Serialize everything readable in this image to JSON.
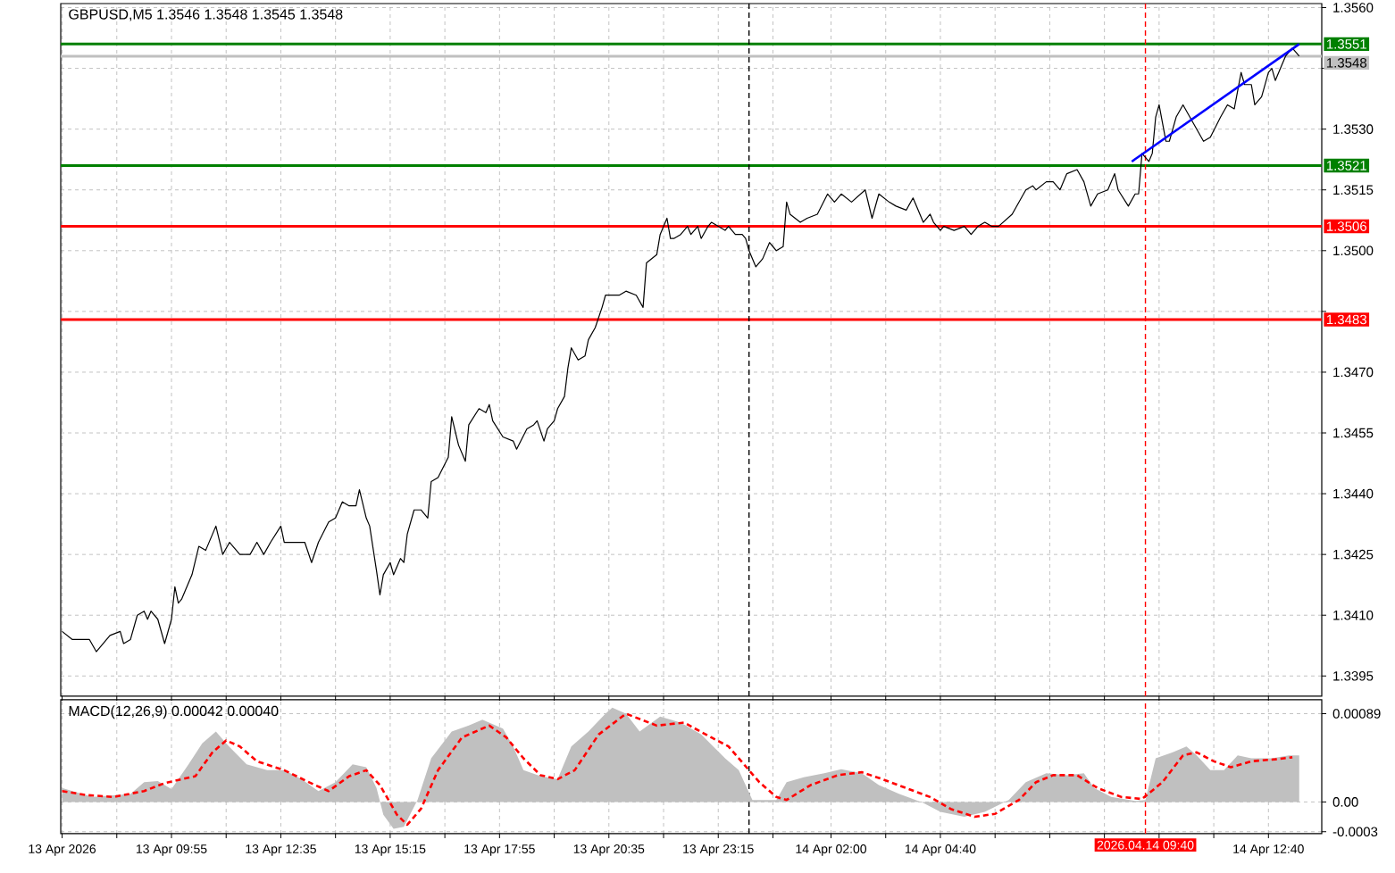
{
  "chart_data": [
    {
      "type": "line",
      "title": "GBPUSD,M5  1.3546 1.3548 1.3545 1.3548",
      "series": [
        {
          "color": "#000000",
          "x": [
            "2026-04-13T07:15",
            "2026-04-13T07:30",
            "2026-04-13T07:55",
            "2026-04-13T08:05",
            "2026-04-13T08:25",
            "2026-04-13T08:40",
            "2026-04-13T08:45",
            "2026-04-13T08:55",
            "2026-04-13T09:05",
            "2026-04-13T09:15",
            "2026-04-13T09:20",
            "2026-04-13T09:25",
            "2026-04-13T09:35",
            "2026-04-13T09:40",
            "2026-04-13T09:45",
            "2026-04-13T09:55",
            "2026-04-13T10:00",
            "2026-04-13T10:05",
            "2026-04-13T10:10",
            "2026-04-13T10:25",
            "2026-04-13T10:35",
            "2026-04-13T10:45",
            "2026-04-13T11:00",
            "2026-04-13T11:10",
            "2026-04-13T11:20",
            "2026-04-13T11:35",
            "2026-04-13T11:50",
            "2026-04-13T12:00",
            "2026-04-13T12:10",
            "2026-04-13T12:20",
            "2026-04-13T12:35",
            "2026-04-13T12:40",
            "2026-04-13T13:00",
            "2026-04-13T13:10",
            "2026-04-13T13:20",
            "2026-04-13T13:30",
            "2026-04-13T13:45",
            "2026-04-13T13:55",
            "2026-04-13T14:05",
            "2026-04-13T14:15",
            "2026-04-13T14:25",
            "2026-04-13T14:30",
            "2026-04-13T14:40",
            "2026-04-13T14:45",
            "2026-04-13T14:55",
            "2026-04-13T15:00",
            "2026-04-13T15:05",
            "2026-04-13T15:15",
            "2026-04-13T15:20",
            "2026-04-13T15:30",
            "2026-04-13T15:35",
            "2026-04-13T15:40",
            "2026-04-13T15:50",
            "2026-04-13T16:00",
            "2026-04-13T16:10",
            "2026-04-13T16:15",
            "2026-04-13T16:25",
            "2026-04-13T16:40",
            "2026-04-13T16:45",
            "2026-04-13T16:55",
            "2026-04-13T17:05",
            "2026-04-13T17:10",
            "2026-04-13T17:25",
            "2026-04-13T17:35",
            "2026-04-13T17:40",
            "2026-04-13T17:45",
            "2026-04-13T18:00",
            "2026-04-13T18:15",
            "2026-04-13T18:20",
            "2026-04-13T18:35",
            "2026-04-13T18:45",
            "2026-04-13T18:50",
            "2026-04-13T19:00",
            "2026-04-13T19:05",
            "2026-04-13T19:15",
            "2026-04-13T19:20",
            "2026-04-13T19:30",
            "2026-04-13T19:35",
            "2026-04-13T19:40",
            "2026-04-13T19:50",
            "2026-04-13T20:00",
            "2026-04-13T20:05",
            "2026-04-13T20:15",
            "2026-04-13T20:25",
            "2026-04-13T20:30",
            "2026-04-13T20:50",
            "2026-04-13T21:00",
            "2026-04-13T21:15",
            "2026-04-13T21:25",
            "2026-04-13T21:30",
            "2026-04-13T21:45",
            "2026-04-13T21:50",
            "2026-04-13T22:00",
            "2026-04-13T22:05",
            "2026-04-13T22:10",
            "2026-04-13T22:20",
            "2026-04-13T22:30",
            "2026-04-13T22:35",
            "2026-04-13T22:45",
            "2026-04-13T22:50",
            "2026-04-13T23:00",
            "2026-04-13T23:05",
            "2026-04-13T23:15",
            "2026-04-13T23:25",
            "2026-04-13T23:30",
            "2026-04-13T23:40",
            "2026-04-13T23:50",
            "2026-04-13T23:55",
            "2026-04-14T00:00",
            "2026-04-14T00:10",
            "2026-04-14T00:20",
            "2026-04-14T00:30",
            "2026-04-14T00:35",
            "2026-04-14T00:40",
            "2026-04-14T00:50",
            "2026-04-14T00:55",
            "2026-04-14T01:00",
            "2026-04-14T01:15",
            "2026-04-14T01:25",
            "2026-04-14T01:40",
            "2026-04-14T01:55",
            "2026-04-14T02:05",
            "2026-04-14T02:15",
            "2026-04-14T02:30",
            "2026-04-14T02:50",
            "2026-04-14T03:00",
            "2026-04-14T03:10",
            "2026-04-14T03:25",
            "2026-04-14T03:35",
            "2026-04-14T03:50",
            "2026-04-14T04:00",
            "2026-04-14T04:15",
            "2026-04-14T04:25",
            "2026-04-14T04:30",
            "2026-04-14T04:40",
            "2026-04-14T04:45",
            "2026-04-14T05:00",
            "2026-04-14T05:15",
            "2026-04-14T05:25",
            "2026-04-14T05:35",
            "2026-04-14T05:45",
            "2026-04-14T05:55",
            "2026-04-14T06:05",
            "2026-04-14T06:25",
            "2026-04-14T06:45",
            "2026-04-14T06:55",
            "2026-04-14T07:00",
            "2026-04-14T07:15",
            "2026-04-14T07:25",
            "2026-04-14T07:35",
            "2026-04-14T07:45",
            "2026-04-14T08:00",
            "2026-04-14T08:10",
            "2026-04-14T08:20",
            "2026-04-14T08:30",
            "2026-04-14T08:45",
            "2026-04-14T08:55",
            "2026-04-14T09:00",
            "2026-04-14T09:15",
            "2026-04-14T09:25",
            "2026-04-14T09:30",
            "2026-04-14T09:35",
            "2026-04-14T09:45",
            "2026-04-14T09:50",
            "2026-04-14T09:55",
            "2026-04-14T10:00",
            "2026-04-14T10:10",
            "2026-04-14T10:15",
            "2026-04-14T10:25",
            "2026-04-14T10:35",
            "2026-04-14T10:45",
            "2026-04-14T11:05",
            "2026-04-14T11:15",
            "2026-04-14T11:30",
            "2026-04-14T11:40",
            "2026-04-14T11:50",
            "2026-04-14T12:00",
            "2026-04-14T12:05",
            "2026-04-14T12:15",
            "2026-04-14T12:20",
            "2026-04-14T12:30",
            "2026-04-14T12:40",
            "2026-04-14T12:45",
            "2026-04-14T12:50",
            "2026-04-14T13:00",
            "2026-04-14T13:05",
            "2026-04-14T13:15",
            "2026-04-14T13:25"
          ],
          "values": [
            1.3406,
            1.3404,
            1.3404,
            1.3401,
            1.3405,
            1.3406,
            1.3403,
            1.3404,
            1.341,
            1.3411,
            1.3409,
            1.3411,
            1.3409,
            1.3406,
            1.3403,
            1.3409,
            1.3417,
            1.3413,
            1.3414,
            1.342,
            1.3427,
            1.3426,
            1.3432,
            1.3425,
            1.3428,
            1.3425,
            1.3425,
            1.3428,
            1.3425,
            1.3428,
            1.3432,
            1.3428,
            1.3428,
            1.3428,
            1.3423,
            1.3428,
            1.3433,
            1.3434,
            1.3438,
            1.3437,
            1.3437,
            1.3441,
            1.3434,
            1.3432,
            1.3421,
            1.3415,
            1.342,
            1.3423,
            1.342,
            1.3424,
            1.3423,
            1.343,
            1.3436,
            1.3436,
            1.3434,
            1.3443,
            1.3444,
            1.3449,
            1.3459,
            1.3452,
            1.3448,
            1.3457,
            1.3461,
            1.346,
            1.3462,
            1.3458,
            1.3454,
            1.3453,
            1.3451,
            1.3456,
            1.3457,
            1.3458,
            1.3453,
            1.3456,
            1.3458,
            1.3461,
            1.3464,
            1.3471,
            1.3476,
            1.3473,
            1.3474,
            1.3478,
            1.3481,
            1.3486,
            1.3489,
            1.3489,
            1.349,
            1.3489,
            1.3486,
            1.3497,
            1.3499,
            1.3504,
            1.3508,
            1.3503,
            1.3503,
            1.3504,
            1.3506,
            1.3504,
            1.3506,
            1.3503,
            1.3506,
            1.3507,
            1.3506,
            1.3505,
            1.3506,
            1.3504,
            1.3504,
            1.3503,
            1.35,
            1.3496,
            1.3498,
            1.3502,
            1.3501,
            1.35,
            1.3501,
            1.3512,
            1.3509,
            1.3507,
            1.3508,
            1.3509,
            1.3514,
            1.3512,
            1.3514,
            1.3512,
            1.3515,
            1.3508,
            1.3514,
            1.3512,
            1.3511,
            1.351,
            1.3513,
            1.3507,
            1.3509,
            1.3507,
            1.3505,
            1.3506,
            1.3505,
            1.3506,
            1.3504,
            1.3506,
            1.3507,
            1.3506,
            1.3506,
            1.3509,
            1.3515,
            1.3516,
            1.3515,
            1.3517,
            1.3517,
            1.3515,
            1.3519,
            1.352,
            1.3517,
            1.3511,
            1.3514,
            1.3515,
            1.3519,
            1.3515,
            1.3511,
            1.3514,
            1.3514,
            1.3524,
            1.3522,
            1.3524,
            1.3533,
            1.3536,
            1.3527,
            1.3527,
            1.3533,
            1.3536,
            1.3533,
            1.3527,
            1.3528,
            1.3533,
            1.3536,
            1.3535,
            1.3544,
            1.3541,
            1.3541,
            1.3536,
            1.3538,
            1.3544,
            1.3545,
            1.3542,
            1.3546,
            1.3548,
            1.355,
            1.3548
          ]
        },
        {
          "color": "#0000ff",
          "x": [
            "2026-04-14T09:20",
            "2026-04-14T13:25"
          ],
          "values": [
            1.3522,
            1.3551
          ]
        }
      ],
      "ref_lines": [
        {
          "axis": "y",
          "value": 1.3551,
          "label": "1.3551",
          "color": "#008000"
        },
        {
          "axis": "y",
          "value": 1.3548,
          "label": "1.3548",
          "color": "#c0c0c0"
        },
        {
          "axis": "y",
          "value": 1.3521,
          "label": "1.3521",
          "color": "#008000"
        },
        {
          "axis": "y",
          "value": 1.3506,
          "label": "1.3506",
          "color": "#ff0000"
        },
        {
          "axis": "y",
          "value": 1.3483,
          "label": "1.3483",
          "color": "#ff0000"
        },
        {
          "axis": "x",
          "value": "2026-04-14T00:00",
          "color": "#000000",
          "line_style": "dashed"
        },
        {
          "axis": "x",
          "value": "2026-04-14T09:40",
          "color": "#ff0000",
          "line_style": "dashed"
        }
      ],
      "grid": true,
      "tick_labels": "y",
      "xlim": [
        "2026-04-13T07:13",
        "2026-04-14T13:58"
      ],
      "xticks": [
        "2026-04-13T07:15",
        "2026-04-13T08:35",
        "2026-04-13T09:55",
        "2026-04-13T11:15",
        "2026-04-13T12:35",
        "2026-04-13T13:55",
        "2026-04-13T15:15",
        "2026-04-13T16:35",
        "2026-04-13T17:55",
        "2026-04-13T19:15",
        "2026-04-13T20:35",
        "2026-04-13T21:55",
        "2026-04-13T23:15",
        "2026-04-14T00:35",
        "2026-04-14T02:00",
        "2026-04-14T03:20",
        "2026-04-14T04:40",
        "2026-04-14T06:00",
        "2026-04-14T07:20",
        "2026-04-14T08:40",
        "2026-04-14T10:00",
        "2026-04-14T11:20",
        "2026-04-14T12:40"
      ],
      "ylim": [
        1.339,
        1.3561
      ],
      "yticks": [
        1.3395,
        {
          "value": 1.341,
          "label": "1.3410"
        },
        1.3425,
        {
          "value": 1.344,
          "label": "1.3440"
        },
        1.3455,
        {
          "value": 1.347,
          "label": "1.3470"
        },
        {
          "value": 1.3485,
          "label": null
        },
        {
          "value": 1.35,
          "label": "1.3500"
        },
        1.3515,
        {
          "value": 1.353,
          "label": "1.3530"
        },
        {
          "value": 1.3545,
          "label": null
        },
        {
          "value": 1.356,
          "label": "1.3560"
        }
      ]
    },
    {
      "type": "area",
      "title": "MACD(12,26,9) 0.00042 0.00040",
      "series": [
        {
          "color": "#c0c0c0",
          "x": [
            "2026-04-13T07:15",
            "2026-04-13T07:30",
            "2026-04-13T08:00",
            "2026-04-13T08:55",
            "2026-04-13T09:15",
            "2026-04-13T09:35",
            "2026-04-13T09:55",
            "2026-04-13T10:20",
            "2026-04-13T10:40",
            "2026-04-13T11:00",
            "2026-04-13T11:15",
            "2026-04-13T11:45",
            "2026-04-13T12:15",
            "2026-04-13T12:40",
            "2026-04-13T13:05",
            "2026-04-13T13:30",
            "2026-04-13T13:55",
            "2026-04-13T14:20",
            "2026-04-13T14:40",
            "2026-04-13T14:55",
            "2026-04-13T15:05",
            "2026-04-13T15:20",
            "2026-04-13T15:35",
            "2026-04-13T15:55",
            "2026-04-13T16:15",
            "2026-04-13T16:45",
            "2026-04-13T17:10",
            "2026-04-13T17:30",
            "2026-04-13T18:00",
            "2026-04-13T18:15",
            "2026-04-13T18:30",
            "2026-04-13T18:55",
            "2026-04-13T19:20",
            "2026-04-13T19:40",
            "2026-04-13T20:05",
            "2026-04-13T20:30",
            "2026-04-13T20:40",
            "2026-04-13T21:00",
            "2026-04-13T21:20",
            "2026-04-13T21:50",
            "2026-04-13T22:20",
            "2026-04-13T22:50",
            "2026-04-13T23:25",
            "2026-04-13T23:45",
            "2026-04-14T00:05",
            "2026-04-14T00:40",
            "2026-04-14T00:55",
            "2026-04-14T01:20",
            "2026-04-14T01:50",
            "2026-04-14T02:15",
            "2026-04-14T02:45",
            "2026-04-14T03:10",
            "2026-04-14T03:40",
            "2026-04-14T04:15",
            "2026-04-14T04:40",
            "2026-04-14T05:15",
            "2026-04-14T05:45",
            "2026-04-14T06:20",
            "2026-04-14T06:45",
            "2026-04-14T07:15",
            "2026-04-14T07:45",
            "2026-04-14T08:10",
            "2026-04-14T08:25",
            "2026-04-14T08:50",
            "2026-04-14T09:25",
            "2026-04-14T09:40",
            "2026-04-14T09:55",
            "2026-04-14T10:20",
            "2026-04-14T10:40",
            "2026-04-14T10:55",
            "2026-04-14T11:15",
            "2026-04-14T11:35",
            "2026-04-14T11:55",
            "2026-04-14T12:15",
            "2026-04-14T12:45",
            "2026-04-14T13:10",
            "2026-04-14T13:25"
          ],
          "values": [
            0.00014,
            0.00011,
            5e-05,
            8e-05,
            0.0002,
            0.00021,
            0.00013,
            0.00038,
            0.00059,
            0.00071,
            0.00059,
            0.00038,
            0.00032,
            0.00032,
            0.00023,
            0.00011,
            0.0002,
            0.00038,
            0.00035,
            0.00014,
            -0.00013,
            -0.00027,
            -0.00025,
            2e-05,
            0.00044,
            0.00071,
            0.00077,
            0.00083,
            0.00074,
            0.00056,
            0.00032,
            0.00026,
            0.00023,
            0.00056,
            0.00071,
            0.00089,
            0.00095,
            0.00089,
            0.00071,
            0.00086,
            0.0008,
            0.00068,
            0.00044,
            0.00032,
            2e-05,
            2e-05,
            0.0002,
            0.00025,
            0.00029,
            0.00033,
            0.00029,
            0.00017,
            8e-05,
            -1e-05,
            -0.0001,
            -0.00015,
            -0.0001,
            2e-05,
            0.0002,
            0.00029,
            0.00027,
            0.00029,
            0.00014,
            5e-05,
            1e-05,
            2e-05,
            0.00044,
            0.0005,
            0.00056,
            0.00047,
            0.00032,
            0.00032,
            0.00047,
            0.00044,
            0.00044,
            0.00047,
            0.00047
          ]
        },
        {
          "type": "line",
          "color": "#ff0000",
          "line_style": "dashed",
          "x": [
            "2026-04-13T07:15",
            "2026-04-13T07:50",
            "2026-04-13T08:30",
            "2026-04-13T09:15",
            "2026-04-13T09:45",
            "2026-04-13T10:30",
            "2026-04-13T10:55",
            "2026-04-13T11:15",
            "2026-04-13T11:35",
            "2026-04-13T12:00",
            "2026-04-13T12:40",
            "2026-04-13T13:25",
            "2026-04-13T13:45",
            "2026-04-13T14:15",
            "2026-04-13T14:40",
            "2026-04-13T15:00",
            "2026-04-13T15:25",
            "2026-04-13T15:40",
            "2026-04-13T16:00",
            "2026-04-13T16:25",
            "2026-04-13T17:00",
            "2026-04-13T17:40",
            "2026-04-13T18:05",
            "2026-04-13T18:30",
            "2026-04-13T18:55",
            "2026-04-13T19:20",
            "2026-04-13T19:45",
            "2026-04-13T20:20",
            "2026-04-13T21:00",
            "2026-04-13T21:45",
            "2026-04-13T22:25",
            "2026-04-13T23:05",
            "2026-04-13T23:30",
            "2026-04-14T00:15",
            "2026-04-14T00:40",
            "2026-04-14T00:55",
            "2026-04-14T01:30",
            "2026-04-14T02:10",
            "2026-04-14T02:45",
            "2026-04-14T03:15",
            "2026-04-14T03:50",
            "2026-04-14T04:25",
            "2026-04-14T04:55",
            "2026-04-14T05:30",
            "2026-04-14T06:00",
            "2026-04-14T06:35",
            "2026-04-14T07:00",
            "2026-04-14T07:25",
            "2026-04-14T08:00",
            "2026-04-14T08:30",
            "2026-04-14T09:05",
            "2026-04-14T09:35",
            "2026-04-14T10:05",
            "2026-04-14T10:35",
            "2026-04-14T10:55",
            "2026-04-14T11:20",
            "2026-04-14T11:45",
            "2026-04-14T12:15",
            "2026-04-14T12:50",
            "2026-04-14T13:15"
          ],
          "values": [
            0.00011,
            7e-05,
            5e-05,
            0.00011,
            0.00019,
            0.00026,
            0.0005,
            0.00062,
            0.00056,
            0.00041,
            0.00032,
            0.00017,
            0.00011,
            0.00026,
            0.00032,
            0.00017,
            -0.00013,
            -0.00023,
            -7e-05,
            0.00032,
            0.00065,
            0.00077,
            0.00065,
            0.00044,
            0.00027,
            0.00023,
            0.00032,
            0.00068,
            0.00089,
            0.00077,
            0.0008,
            0.00065,
            0.00056,
            0.0002,
            5e-05,
            2e-05,
            0.00017,
            0.00027,
            0.0003,
            0.00023,
            0.00014,
            5e-05,
            -7e-05,
            -0.00015,
            -0.00012,
            2e-05,
            0.0002,
            0.00027,
            0.00027,
            0.00014,
            5e-05,
            3e-05,
            0.0002,
            0.00047,
            0.0005,
            0.00041,
            0.00035,
            0.00041,
            0.00043,
            0.00045
          ]
        }
      ],
      "ref_lines": [
        {
          "axis": "x",
          "value": "2026-04-14T00:00",
          "color": "#000000",
          "line_style": "dashed"
        },
        {
          "axis": "x",
          "value": "2026-04-14T09:40",
          "label": "2026.04.14 09:40",
          "color": "#ff0000",
          "line_style": "dashed"
        }
      ],
      "grid": true,
      "xlim": [
        "2026-04-13T07:13",
        "2026-04-14T13:58"
      ],
      "xticks": [
        {
          "value": "2026-04-13T07:15",
          "label": "13 Apr 2026"
        },
        {
          "value": "2026-04-13T08:35",
          "label": null
        },
        {
          "value": "2026-04-13T09:55",
          "label": "13 Apr 09:55"
        },
        {
          "value": "2026-04-13T11:15",
          "label": null
        },
        {
          "value": "2026-04-13T12:35",
          "label": "13 Apr 12:35"
        },
        {
          "value": "2026-04-13T13:55",
          "label": null
        },
        {
          "value": "2026-04-13T15:15",
          "label": "13 Apr 15:15"
        },
        {
          "value": "2026-04-13T16:35",
          "label": null
        },
        {
          "value": "2026-04-13T17:55",
          "label": "13 Apr 17:55"
        },
        {
          "value": "2026-04-13T19:15",
          "label": null
        },
        {
          "value": "2026-04-13T20:35",
          "label": "13 Apr 20:35"
        },
        {
          "value": "2026-04-13T21:55",
          "label": null
        },
        {
          "value": "2026-04-13T23:15",
          "label": "13 Apr 23:15"
        },
        {
          "value": "2026-04-14T00:35",
          "label": null
        },
        {
          "value": "2026-04-14T02:00",
          "label": "14 Apr 02:00"
        },
        {
          "value": "2026-04-14T03:20",
          "label": null
        },
        {
          "value": "2026-04-14T04:40",
          "label": "14 Apr 04:40"
        },
        {
          "value": "2026-04-14T06:00",
          "label": null
        },
        {
          "value": "2026-04-14T07:20",
          "label": null
        },
        {
          "value": "2026-04-14T08:40",
          "label": null
        },
        {
          "value": "2026-04-14T10:00",
          "label": null
        },
        {
          "value": "2026-04-14T11:20",
          "label": null
        },
        {
          "value": "2026-04-14T12:40",
          "label": "14 Apr 12:40"
        }
      ],
      "ylim": [
        -0.00032,
        0.00103
      ],
      "yticks": [
        0.00089,
        {
          "value": 0,
          "label": "0.00"
        },
        -0.0003
      ]
    }
  ]
}
